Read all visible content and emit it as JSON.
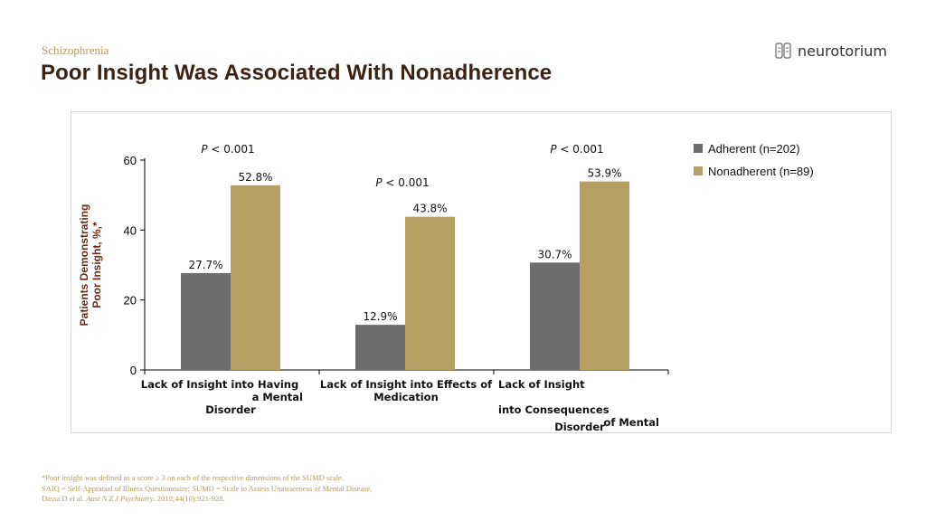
{
  "header": {
    "category": "Schizophrenia",
    "title": "Poor Insight Was Associated With Nonadherence",
    "logo_text": "neurotorium"
  },
  "colors": {
    "adherent": "#6d6d6d",
    "nonadherent": "#b69f62",
    "title": "#3e2112",
    "accent": "#b49a5a",
    "axis_label": "#6b2a12"
  },
  "chart_data": {
    "type": "bar",
    "ylabel_line1": "Patients Demonstrating",
    "ylabel_line2": "Poor Insight, %,*",
    "ylim": [
      0,
      60
    ],
    "yticks": [
      0,
      20,
      40,
      60
    ],
    "grid": false,
    "legend_position": "right",
    "categories": [
      [
        "Lack of Insight into Having",
        "a Mental",
        "Disorder"
      ],
      [
        "Lack of Insight into Effects of",
        "Medication"
      ],
      [
        "Lack of Insight",
        "into Consequences",
        "of Mental",
        "Disorder"
      ]
    ],
    "series": [
      {
        "name": "Adherent (n=202)",
        "values": [
          27.7,
          12.9,
          30.7
        ],
        "labels": [
          "27.7%",
          "12.9%",
          "30.7%"
        ]
      },
      {
        "name": "Nonadherent (n=89)",
        "values": [
          52.8,
          43.8,
          53.9
        ],
        "labels": [
          "52.8%",
          "43.8%",
          "53.9%"
        ]
      }
    ],
    "p_values": [
      {
        "p": "P",
        "rest": " < 0.001"
      },
      {
        "p": "P",
        "rest": " < 0.001"
      },
      {
        "p": "P",
        "rest": " < 0.001"
      }
    ]
  },
  "footnotes": {
    "line1": "*Poor insight was defined as a score  ≥ 3 on each of the respective dimensions of the SUMD scale.",
    "line2": "SAIQ = Self-Appraisal of Illness Questionnaire; SUMD = Scale to Assess Unawareness of Mental Disease.",
    "line3_pre": "Dassa D et al. ",
    "line3_journal": "Aust N Z J Psychiatry",
    "line3_post": ". 2010;44(10):921-928."
  }
}
